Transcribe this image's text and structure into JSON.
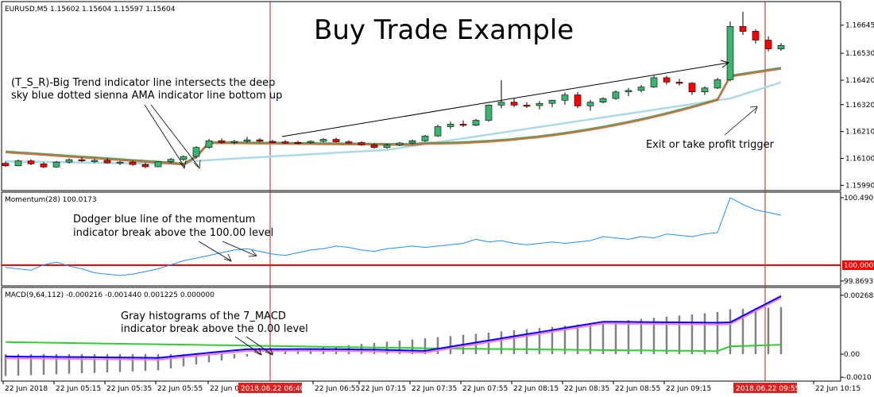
{
  "window": {
    "symbol_header": "EURUSD,M5  1.15602 1.15604 1.15597 1.15604",
    "title": "Buy Trade Example"
  },
  "annotations": {
    "tsr_line1": "(T_S_R)-Big Trend indicator line intersects the deep",
    "tsr_line2": "sky blue dotted sienna AMA indicator line bottom up",
    "exit": "Exit or take profit trigger",
    "mom_line1": "Dodger blue line of the momentum",
    "mom_line2": "indicator break above the 100.00 level",
    "macd_line1": "Gray histograms of the 7_MACD",
    "macd_line2": "indicator break above the 0.00 level"
  },
  "colors": {
    "bull": "#3cb371",
    "bear": "#ff0000",
    "sienna": "#c0662e",
    "green_line": "#3cb371",
    "ama": "#add8e6",
    "momentum": "#1e90ff",
    "level": "#ff0000",
    "macd_blue": "#0000ff",
    "macd_pink": "#ff77cc",
    "macd_green": "#32cd32",
    "hist": "#808080",
    "vline": "#b22222"
  },
  "chart_data": [
    {
      "type": "candlestick",
      "label": "EURUSD,M5",
      "y_ticks": [
        "1.16645",
        "1.16530",
        "1.16420",
        "1.16320",
        "1.16210",
        "1.16100",
        "1.15990"
      ],
      "candles": [
        [
          0,
          1.1608,
          1.16088,
          1.16065,
          1.1607
        ],
        [
          1,
          1.1607,
          1.16095,
          1.16068,
          1.1609
        ],
        [
          2,
          1.1609,
          1.16096,
          1.16072,
          1.16078
        ],
        [
          3,
          1.16078,
          1.16085,
          1.1606,
          1.16065
        ],
        [
          4,
          1.16065,
          1.1609,
          1.16062,
          1.16085
        ],
        [
          5,
          1.16085,
          1.161,
          1.1608,
          1.16095
        ],
        [
          6,
          1.16095,
          1.16105,
          1.16085,
          1.1609
        ],
        [
          7,
          1.1609,
          1.16098,
          1.16082,
          1.16092
        ],
        [
          8,
          1.16092,
          1.161,
          1.16078,
          1.16082
        ],
        [
          9,
          1.16082,
          1.1609,
          1.16072,
          1.16085
        ],
        [
          10,
          1.16085,
          1.16092,
          1.1607,
          1.16075
        ],
        [
          11,
          1.16075,
          1.16082,
          1.1606,
          1.16066
        ],
        [
          12,
          1.16066,
          1.1609,
          1.16064,
          1.16086
        ],
        [
          13,
          1.16086,
          1.16102,
          1.1608,
          1.16096
        ],
        [
          14,
          1.16096,
          1.16112,
          1.1609,
          1.16108
        ],
        [
          15,
          1.16108,
          1.1615,
          1.161,
          1.16145
        ],
        [
          16,
          1.16145,
          1.1618,
          1.1614,
          1.16172
        ],
        [
          17,
          1.16172,
          1.16182,
          1.1616,
          1.16165
        ],
        [
          18,
          1.16165,
          1.16176,
          1.16158,
          1.1617
        ],
        [
          19,
          1.1617,
          1.16188,
          1.16164,
          1.16176
        ],
        [
          20,
          1.16176,
          1.16183,
          1.16166,
          1.1617
        ],
        [
          21,
          1.1617,
          1.16176,
          1.16162,
          1.16168
        ],
        [
          22,
          1.16168,
          1.16175,
          1.1616,
          1.16166
        ],
        [
          23,
          1.16166,
          1.16172,
          1.16158,
          1.16164
        ],
        [
          24,
          1.16164,
          1.16174,
          1.1616,
          1.1617
        ],
        [
          25,
          1.1617,
          1.16183,
          1.16166,
          1.16178
        ],
        [
          26,
          1.16178,
          1.16185,
          1.16165,
          1.16168
        ],
        [
          27,
          1.16168,
          1.16174,
          1.1616,
          1.16165
        ],
        [
          28,
          1.16165,
          1.1617,
          1.16152,
          1.16156
        ],
        [
          29,
          1.16156,
          1.16162,
          1.1614,
          1.16145
        ],
        [
          30,
          1.16145,
          1.1616,
          1.1614,
          1.16155
        ],
        [
          31,
          1.16155,
          1.16168,
          1.1615,
          1.16163
        ],
        [
          32,
          1.16163,
          1.16178,
          1.16158,
          1.16172
        ],
        [
          33,
          1.16172,
          1.16196,
          1.16168,
          1.16192
        ],
        [
          34,
          1.16192,
          1.16238,
          1.16188,
          1.1623
        ],
        [
          35,
          1.1623,
          1.1625,
          1.1622,
          1.1624
        ],
        [
          36,
          1.1624,
          1.16255,
          1.16228,
          1.16236
        ],
        [
          37,
          1.16236,
          1.16262,
          1.16232,
          1.16256
        ],
        [
          38,
          1.16256,
          1.1632,
          1.1625,
          1.16318
        ],
        [
          39,
          1.16318,
          1.1642,
          1.16305,
          1.1633
        ],
        [
          40,
          1.1633,
          1.16345,
          1.1631,
          1.16318
        ],
        [
          41,
          1.16318,
          1.1633,
          1.16306,
          1.16316
        ],
        [
          42,
          1.16316,
          1.16335,
          1.163,
          1.16325
        ],
        [
          43,
          1.16325,
          1.1634,
          1.1631,
          1.16338
        ],
        [
          44,
          1.16338,
          1.1637,
          1.1632,
          1.1636
        ],
        [
          45,
          1.1636,
          1.16372,
          1.16305,
          1.16315
        ],
        [
          46,
          1.16315,
          1.1634,
          1.16295,
          1.1633
        ],
        [
          47,
          1.1633,
          1.1635,
          1.16325,
          1.16345
        ],
        [
          48,
          1.16345,
          1.16378,
          1.1634,
          1.16372
        ],
        [
          49,
          1.16372,
          1.16388,
          1.16355,
          1.16378
        ],
        [
          50,
          1.16378,
          1.164,
          1.1637,
          1.16392
        ],
        [
          51,
          1.16392,
          1.16438,
          1.16388,
          1.1643
        ],
        [
          52,
          1.1643,
          1.16438,
          1.16402,
          1.16412
        ],
        [
          53,
          1.16412,
          1.16425,
          1.16398,
          1.16408
        ],
        [
          54,
          1.16408,
          1.16412,
          1.1636,
          1.16372
        ],
        [
          55,
          1.16372,
          1.16395,
          1.1636,
          1.16388
        ],
        [
          56,
          1.16388,
          1.1643,
          1.16384,
          1.16422
        ],
        [
          57,
          1.16422,
          1.1666,
          1.16415,
          1.1664
        ],
        [
          58,
          1.1664,
          1.167,
          1.16605,
          1.1662
        ],
        [
          59,
          1.1662,
          1.16628,
          1.1657,
          1.16584
        ],
        [
          60,
          1.16584,
          1.166,
          1.16538,
          1.16548
        ],
        [
          61,
          1.16548,
          1.16572,
          1.1654,
          1.16562
        ]
      ]
    },
    {
      "type": "line",
      "label": "Momentum(28) 100.0173",
      "y_ticks": [
        "100.4907",
        "100.0000",
        "99.8693"
      ],
      "level": 100.0
    },
    {
      "type": "bar",
      "label": "MACD(9,64,112) -0.000216 -0.001440 0.001225 0.000000",
      "y_ticks": [
        "0.002686",
        "0.00",
        "-0.0010"
      ],
      "zero": 0.0
    }
  ],
  "x_axis": {
    "labels": [
      "22 Jun 2018",
      "22 Jun 05:15",
      "22 Jun 05:35",
      "22 Jun 05:55",
      "22 Jun 06",
      "22 Jun 06:55",
      "22 Jun 07:15",
      "22 Jun 07:35",
      "22 Jun 07:55",
      "22 Jun 08:15",
      "22 Jun 08:35",
      "22 Jun 08:55",
      "22 Jun 09:15",
      "22 Jun 10:15"
    ],
    "highlight1": "2018.06.22 06:40",
    "highlight2": "2018.06.22 09:55"
  }
}
